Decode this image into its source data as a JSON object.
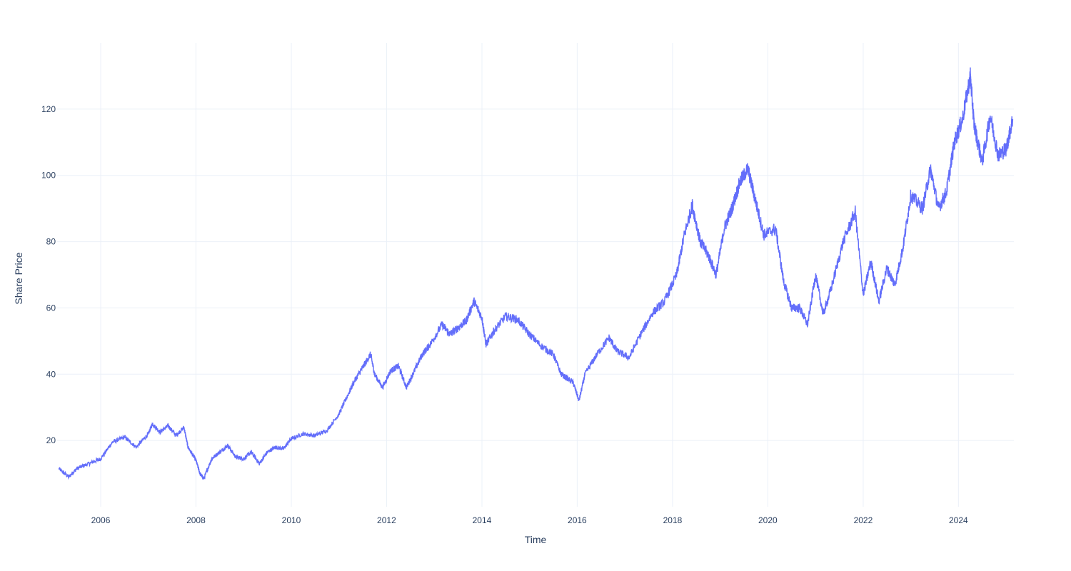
{
  "chart_data": {
    "type": "line",
    "title": "",
    "xlabel": "Time",
    "ylabel": "Share Price",
    "grid": true,
    "legend": "none",
    "line_color": "#636efa",
    "grid_color": "#ebf0f8",
    "text_color": "#2a3f5f",
    "xlim": [
      "2005-02-01",
      "2025-03-01"
    ],
    "ylim": [
      0,
      140
    ],
    "x_ticks": [
      "2006-01-01",
      "2008-01-01",
      "2010-01-01",
      "2012-01-01",
      "2014-01-01",
      "2016-01-01",
      "2018-01-01",
      "2020-01-01",
      "2022-01-01",
      "2024-01-01"
    ],
    "x_tick_labels": [
      "2006",
      "2008",
      "2010",
      "2012",
      "2014",
      "2016",
      "2018",
      "2020",
      "2022",
      "2024"
    ],
    "y_ticks": [
      20,
      40,
      60,
      80,
      100,
      120
    ],
    "y_tick_labels": [
      "20",
      "40",
      "60",
      "80",
      "100",
      "120"
    ],
    "series": [
      {
        "points": [
          [
            "2005-02-15",
            11.5
          ],
          [
            "2005-05-01",
            9.0
          ],
          [
            "2005-07-01",
            11.5
          ],
          [
            "2005-10-01",
            13.0
          ],
          [
            "2006-01-01",
            14.5
          ],
          [
            "2006-04-01",
            19.5
          ],
          [
            "2006-07-01",
            21.0
          ],
          [
            "2006-10-01",
            18.0
          ],
          [
            "2007-01-01",
            22.0
          ],
          [
            "2007-02-01",
            25.0
          ],
          [
            "2007-04-01",
            22.5
          ],
          [
            "2007-06-01",
            24.5
          ],
          [
            "2007-08-01",
            21.5
          ],
          [
            "2007-10-01",
            24.0
          ],
          [
            "2007-11-01",
            18.0
          ],
          [
            "2008-01-01",
            14.0
          ],
          [
            "2008-02-01",
            10.0
          ],
          [
            "2008-03-01",
            8.5
          ],
          [
            "2008-05-01",
            14.5
          ],
          [
            "2008-07-01",
            16.5
          ],
          [
            "2008-09-01",
            18.5
          ],
          [
            "2008-11-01",
            15.0
          ],
          [
            "2009-01-01",
            14.5
          ],
          [
            "2009-03-01",
            16.5
          ],
          [
            "2009-05-01",
            13.0
          ],
          [
            "2009-07-01",
            16.5
          ],
          [
            "2009-09-01",
            18.0
          ],
          [
            "2009-11-01",
            17.5
          ],
          [
            "2010-01-01",
            20.5
          ],
          [
            "2010-04-01",
            22.0
          ],
          [
            "2010-07-01",
            21.5
          ],
          [
            "2010-10-01",
            23.0
          ],
          [
            "2011-01-01",
            28.0
          ],
          [
            "2011-03-01",
            33.0
          ],
          [
            "2011-05-01",
            38.0
          ],
          [
            "2011-07-01",
            42.0
          ],
          [
            "2011-09-01",
            46.0
          ],
          [
            "2011-10-01",
            40.0
          ],
          [
            "2011-12-01",
            36.0
          ],
          [
            "2012-02-01",
            41.0
          ],
          [
            "2012-04-01",
            42.5
          ],
          [
            "2012-06-01",
            36.0
          ],
          [
            "2012-08-01",
            41.0
          ],
          [
            "2012-10-01",
            46.0
          ],
          [
            "2012-12-01",
            49.0
          ],
          [
            "2013-03-01",
            55.0
          ],
          [
            "2013-05-01",
            52.0
          ],
          [
            "2013-07-01",
            54.0
          ],
          [
            "2013-09-01",
            56.0
          ],
          [
            "2013-11-01",
            62.0
          ],
          [
            "2014-01-01",
            57.0
          ],
          [
            "2014-02-01",
            49.0
          ],
          [
            "2014-04-01",
            53.0
          ],
          [
            "2014-07-01",
            57.5
          ],
          [
            "2014-10-01",
            56.5
          ],
          [
            "2015-01-01",
            52.0
          ],
          [
            "2015-04-01",
            48.5
          ],
          [
            "2015-07-01",
            46.0
          ],
          [
            "2015-09-01",
            40.0
          ],
          [
            "2015-12-01",
            37.5
          ],
          [
            "2016-01-15",
            32.0
          ],
          [
            "2016-03-01",
            40.0
          ],
          [
            "2016-06-01",
            46.0
          ],
          [
            "2016-09-01",
            51.0
          ],
          [
            "2016-11-01",
            47.0
          ],
          [
            "2017-02-01",
            45.0
          ],
          [
            "2017-05-01",
            52.0
          ],
          [
            "2017-08-01",
            58.5
          ],
          [
            "2017-11-01",
            62.0
          ],
          [
            "2018-02-01",
            70.0
          ],
          [
            "2018-04-01",
            82.0
          ],
          [
            "2018-06-01",
            91.0
          ],
          [
            "2018-08-01",
            80.0
          ],
          [
            "2018-10-01",
            76.0
          ],
          [
            "2018-12-01",
            70.0
          ],
          [
            "2019-02-01",
            84.0
          ],
          [
            "2019-04-01",
            90.0
          ],
          [
            "2019-06-01",
            98.0
          ],
          [
            "2019-08-01",
            102.0
          ],
          [
            "2019-10-01",
            92.0
          ],
          [
            "2019-12-01",
            82.0
          ],
          [
            "2020-03-01",
            84.0
          ],
          [
            "2020-05-01",
            68.0
          ],
          [
            "2020-07-01",
            60.0
          ],
          [
            "2020-09-01",
            60.0
          ],
          [
            "2020-11-01",
            55.0
          ],
          [
            "2021-01-01",
            70.0
          ],
          [
            "2021-03-01",
            58.0
          ],
          [
            "2021-05-01",
            66.0
          ],
          [
            "2021-08-01",
            80.0
          ],
          [
            "2021-11-01",
            89.0
          ],
          [
            "2022-01-01",
            64.0
          ],
          [
            "2022-03-01",
            74.0
          ],
          [
            "2022-05-01",
            62.0
          ],
          [
            "2022-07-01",
            72.0
          ],
          [
            "2022-09-01",
            67.0
          ],
          [
            "2022-11-01",
            78.0
          ],
          [
            "2023-01-01",
            94.0
          ],
          [
            "2023-04-01",
            90.0
          ],
          [
            "2023-06-01",
            102.0
          ],
          [
            "2023-08-01",
            90.0
          ],
          [
            "2023-10-01",
            95.0
          ],
          [
            "2023-12-01",
            110.0
          ],
          [
            "2024-02-01",
            117.0
          ],
          [
            "2024-04-01",
            130.0
          ],
          [
            "2024-05-01",
            115.0
          ],
          [
            "2024-07-01",
            104.0
          ],
          [
            "2024-09-01",
            118.0
          ],
          [
            "2024-11-01",
            106.0
          ],
          [
            "2025-01-01",
            108.0
          ],
          [
            "2025-02-20",
            117.0
          ]
        ]
      }
    ]
  }
}
